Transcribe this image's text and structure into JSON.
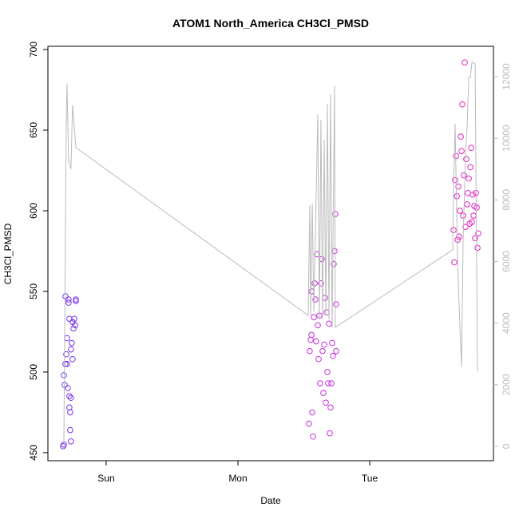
{
  "chart_data": {
    "type": "scatter",
    "title": "ATOM1 North_America CH3Cl_PMSD",
    "x_label": "Date",
    "y_label": "CH3Cl_PMSD",
    "xlim": [
      -0.442,
      2.939
    ],
    "xticks": [
      {
        "value": 0,
        "label": "Sun"
      },
      {
        "value": 1,
        "label": "Mon"
      },
      {
        "value": 2,
        "label": "Tue"
      }
    ],
    "ylim": [
      445,
      702
    ],
    "yticks": [
      450,
      500,
      550,
      600,
      650,
      700
    ],
    "y2lim": [
      -467,
      12985
    ],
    "y2ticks": [
      0,
      2000,
      4000,
      6000,
      8000,
      10000,
      12000
    ],
    "y2_color": "#bbbbbb",
    "grid": false,
    "series": [
      {
        "color": "#7a33ee",
        "x": [
          -0.327,
          -0.321,
          -0.321,
          -0.315,
          -0.309,
          -0.309,
          -0.303,
          -0.297,
          -0.297,
          -0.291,
          -0.285,
          -0.285,
          -0.279,
          -0.279,
          -0.279,
          -0.273,
          -0.273,
          -0.267,
          -0.267,
          -0.261,
          -0.255,
          -0.255,
          -0.248,
          -0.242,
          -0.236,
          -0.23,
          -0.23,
          -0.267
        ],
        "values": [
          454,
          455,
          498,
          492,
          547,
          505,
          511,
          521,
          505,
          490,
          545,
          543,
          533,
          485,
          478,
          475,
          464,
          457,
          514,
          518,
          508,
          531,
          527,
          533,
          529,
          544,
          545,
          484
        ]
      },
      {
        "color": "#c82ee0",
        "x": [
          1.539,
          1.545,
          1.552,
          1.558,
          1.558,
          1.564,
          1.57,
          1.576,
          1.582,
          1.588,
          1.594,
          1.6,
          1.606,
          1.612,
          1.618,
          1.624,
          1.63,
          1.636,
          1.642,
          1.648,
          1.655,
          1.661,
          1.667,
          1.673,
          1.679,
          1.685,
          1.691,
          1.697,
          1.703,
          1.709,
          1.715,
          1.721,
          1.727,
          1.733,
          1.739,
          1.745,
          1.745
        ],
        "values": [
          468,
          513,
          520,
          523,
          550,
          475,
          460,
          534,
          555,
          545,
          519,
          573,
          529,
          508,
          535,
          493,
          555,
          570,
          513,
          487,
          517,
          546,
          481,
          537,
          500,
          493,
          530,
          462,
          478,
          493,
          518,
          510,
          567,
          575,
          598,
          542,
          513
        ]
      },
      {
        "color": "#e620c8",
        "x": [
          2.636,
          2.642,
          2.648,
          2.655,
          2.661,
          2.667,
          2.673,
          2.679,
          2.685,
          2.691,
          2.697,
          2.703,
          2.709,
          2.715,
          2.721,
          2.727,
          2.733,
          2.739,
          2.745,
          2.752,
          2.758,
          2.764,
          2.77,
          2.776,
          2.782,
          2.788,
          2.794,
          2.8,
          2.806,
          2.812,
          2.818,
          2.824
        ],
        "values": [
          588,
          568,
          619,
          634,
          609,
          582,
          615,
          584,
          600,
          646,
          637,
          666,
          597,
          622,
          692,
          590,
          632,
          604,
          611,
          620,
          592,
          627,
          639,
          593,
          610,
          597,
          603,
          583,
          611,
          602,
          577,
          586
        ]
      },
      {
        "type": "line",
        "axis": "y2",
        "color": "#bbbbbb",
        "x": [
          -0.321,
          -0.303,
          -0.297,
          -0.285,
          -0.267,
          -0.255,
          -0.242,
          -0.23,
          1.533,
          1.545,
          1.552,
          1.564,
          1.576,
          1.606,
          1.618,
          1.63,
          1.642,
          1.655,
          1.667,
          1.679,
          1.691,
          1.703,
          1.715,
          1.733,
          1.739,
          2.63,
          2.636,
          2.648,
          2.667,
          2.679,
          2.697,
          2.709,
          2.721,
          2.727,
          2.739,
          2.752,
          2.764,
          2.776,
          2.8,
          2.818
        ],
        "values": [
          100,
          10470,
          11770,
          9300,
          9000,
          11080,
          10400,
          9700,
          4250,
          7830,
          4250,
          7880,
          4380,
          10780,
          4120,
          10600,
          4120,
          9950,
          4250,
          11120,
          4120,
          11430,
          3860,
          11690,
          3860,
          6380,
          8270,
          10470,
          5940,
          4510,
          2570,
          6710,
          8530,
          9560,
          10340,
          11980,
          11980,
          12470,
          12420,
          2440
        ]
      }
    ]
  }
}
